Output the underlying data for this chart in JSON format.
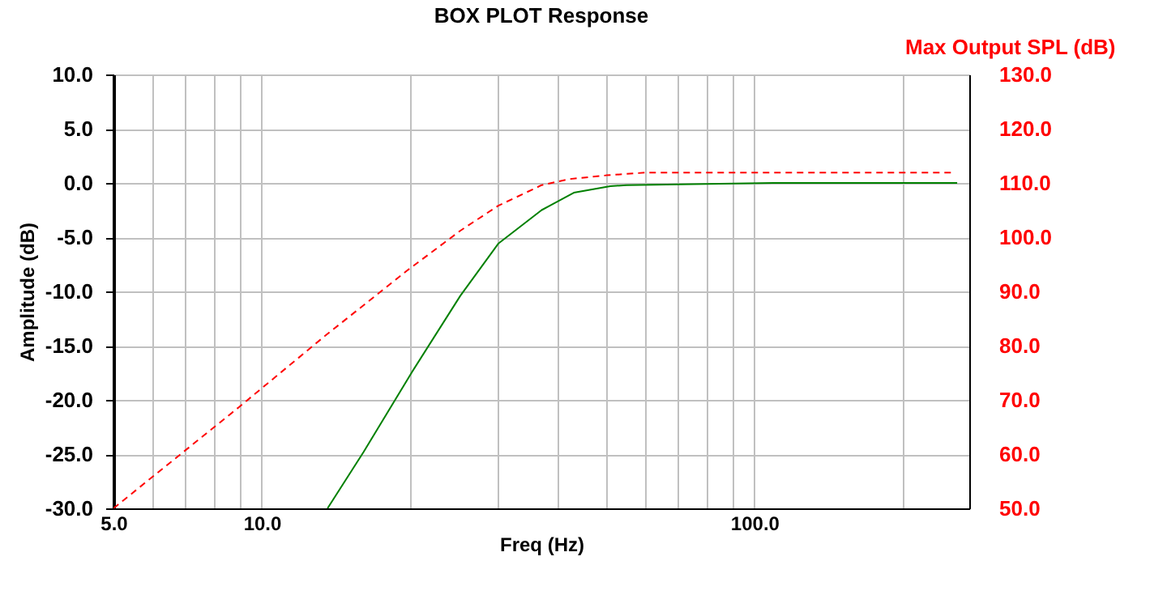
{
  "chart_data": {
    "type": "line",
    "title": "BOX PLOT  Response",
    "xlabel": "Freq (Hz)",
    "ylabel": "Amplitude (dB)",
    "y2label": "Max Output SPL (dB)",
    "log": "x",
    "grid": true,
    "marker": "none",
    "xlim": [
      5,
      273
    ],
    "xticks": [
      {
        "value": 5,
        "label": "5.0"
      },
      {
        "value": 6,
        "label": null
      },
      {
        "value": 7,
        "label": null
      },
      {
        "value": 8,
        "label": null
      },
      {
        "value": 9,
        "label": null
      },
      {
        "value": 10,
        "label": "10.0"
      },
      {
        "value": 20,
        "label": null
      },
      {
        "value": 30,
        "label": null
      },
      {
        "value": 40,
        "label": null
      },
      {
        "value": 50,
        "label": null
      },
      {
        "value": 60,
        "label": null
      },
      {
        "value": 70,
        "label": null
      },
      {
        "value": 80,
        "label": null
      },
      {
        "value": 90,
        "label": null
      },
      {
        "value": 100,
        "label": "100.0"
      },
      {
        "value": 200,
        "label": null
      }
    ],
    "ylim": [
      -30,
      10
    ],
    "yticks": [
      {
        "value": -30,
        "label": "-30.0"
      },
      {
        "value": -25,
        "label": "-25.0"
      },
      {
        "value": -20,
        "label": "-20.0"
      },
      {
        "value": -15,
        "label": "-15.0"
      },
      {
        "value": -10,
        "label": "-10.0"
      },
      {
        "value": -5,
        "label": "-5.0"
      },
      {
        "value": 0,
        "label": "0.0"
      },
      {
        "value": 5,
        "label": "5.0"
      },
      {
        "value": 10,
        "label": "10.0"
      }
    ],
    "y2lim": [
      50,
      130
    ],
    "y2ticks": [
      {
        "value": 50,
        "label": "50.0"
      },
      {
        "value": 60,
        "label": "60.0"
      },
      {
        "value": 70,
        "label": "70.0"
      },
      {
        "value": 80,
        "label": "80.0"
      },
      {
        "value": 90,
        "label": "90.0"
      },
      {
        "value": 100,
        "label": "100.0"
      },
      {
        "value": 110,
        "label": "110.0"
      },
      {
        "value": 120,
        "label": "120.0"
      },
      {
        "value": 130,
        "label": "130.0"
      }
    ],
    "series": [
      {
        "color": "#008000",
        "line_style": "solid",
        "x": [
          13.6,
          16.1,
          20.2,
          25.3,
          30.2,
          37,
          43,
          51,
          55,
          109,
          258
        ],
        "values": [
          -30,
          -24.8,
          -17.4,
          -10.4,
          -5.6,
          -2.5,
          -0.9,
          -0.3,
          -0.2,
          0,
          0
        ]
      },
      {
        "color": "#ff0000",
        "line_style": "dashed",
        "axis": "y2",
        "x": [
          5,
          9,
          13.4,
          19.7,
          25.3,
          30.2,
          37,
          42,
          50,
          60,
          252
        ],
        "values": [
          50,
          68.7,
          81.7,
          93.8,
          101.2,
          105.8,
          109.6,
          110.7,
          111.4,
          111.9,
          111.9
        ]
      }
    ]
  }
}
